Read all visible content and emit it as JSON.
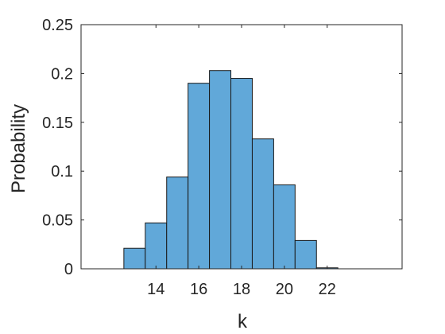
{
  "chart_data": {
    "type": "bar",
    "title": "",
    "xlabel": "k",
    "ylabel": "Probability",
    "xlim": [
      10.5,
      25.5
    ],
    "ylim": [
      0,
      0.25
    ],
    "bin_width": 1,
    "x": [
      13,
      14,
      15,
      16,
      17,
      18,
      19,
      20,
      21,
      22
    ],
    "values": [
      0.021,
      0.047,
      0.094,
      0.19,
      0.203,
      0.195,
      0.133,
      0.086,
      0.029,
      0.001
    ],
    "xticks": [
      14,
      16,
      18,
      20,
      22
    ],
    "xtick_labels": [
      "14",
      "16",
      "18",
      "20",
      "22"
    ],
    "yticks": [
      0,
      0.05,
      0.1,
      0.15,
      0.2,
      0.25
    ],
    "ytick_labels": [
      "0",
      "0.05",
      "0.1",
      "0.15",
      "0.2",
      "0.25"
    ],
    "grid": false,
    "bar_color": "#61a8d9",
    "edge_color": "#1a1a1a"
  }
}
